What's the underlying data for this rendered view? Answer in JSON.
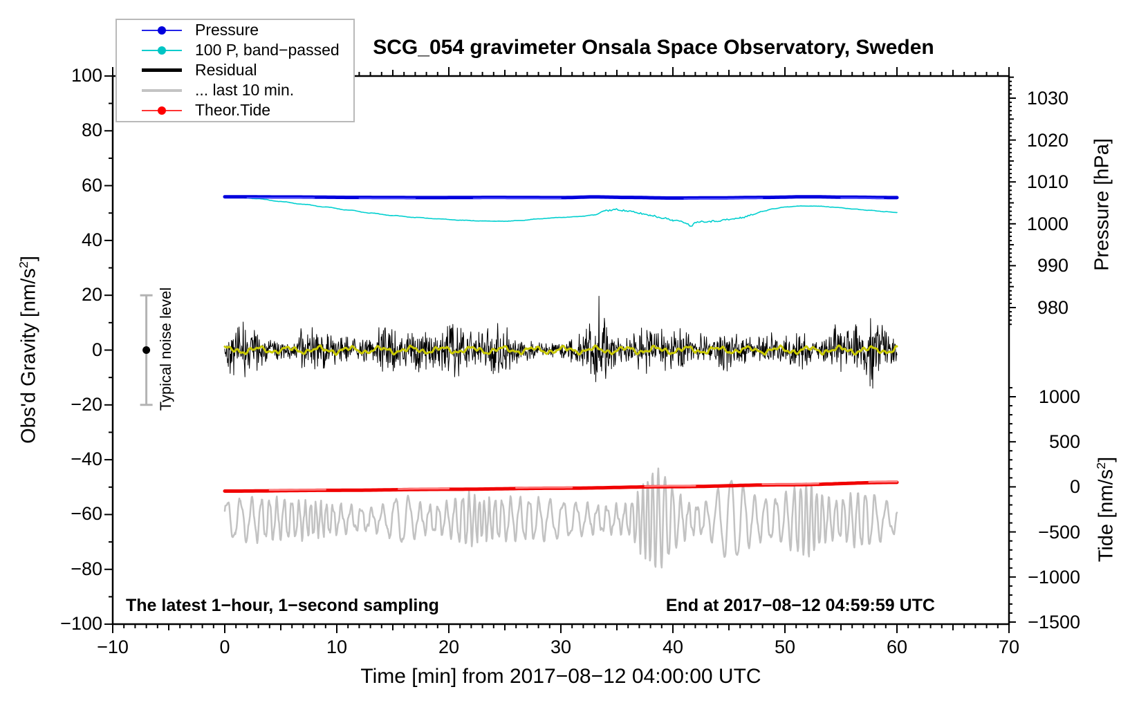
{
  "chart_data": {
    "type": "line",
    "title": "SCG_054 gravimeter Onsala Space Observatory, Sweden",
    "xlabel": "Time [min] from 2017−08−12 04:00:00 UTC",
    "ylabel_left": {
      "text": "Obs'd Gravity [nm/s",
      "sup": "2",
      "suffix": "]"
    },
    "ylabel_pressure": "Pressure [hPa]",
    "ylabel_tide": {
      "text": "Tide [nm/s",
      "sup": "2",
      "suffix": "]"
    },
    "annotation_left": "The latest 1−hour, 1−second sampling",
    "annotation_right": "End at 2017−08−12 04:59:59 UTC",
    "axes": {
      "x": {
        "min": -10,
        "max": 70,
        "minor_step": 1,
        "medium_step": 5,
        "ticks": [
          {
            "v": -10,
            "label": "−10"
          },
          {
            "v": 0,
            "label": "0"
          },
          {
            "v": 10,
            "label": "10"
          },
          {
            "v": 20,
            "label": "20"
          },
          {
            "v": 30,
            "label": "30"
          },
          {
            "v": 40,
            "label": "40"
          },
          {
            "v": 50,
            "label": "50"
          },
          {
            "v": 60,
            "label": "60"
          },
          {
            "v": 70,
            "label": "70"
          }
        ]
      },
      "gravity": {
        "min": -100,
        "max": 100,
        "minor_step": 10,
        "ticks": [
          {
            "v": 100,
            "label": "100"
          },
          {
            "v": 80,
            "label": "80"
          },
          {
            "v": 60,
            "label": "60"
          },
          {
            "v": 40,
            "label": "40"
          },
          {
            "v": 20,
            "label": "20"
          },
          {
            "v": 0,
            "label": "0"
          },
          {
            "v": -20,
            "label": "−20"
          },
          {
            "v": -40,
            "label": "−40"
          },
          {
            "v": -60,
            "label": "−60"
          },
          {
            "v": -80,
            "label": "−80"
          },
          {
            "v": -100,
            "label": "−100"
          }
        ]
      },
      "pressure": {
        "minor_range": [
          976,
          1035
        ],
        "minor_step": 1,
        "medium_step": 5,
        "ticks": [
          {
            "v": 1030,
            "label": "1030"
          },
          {
            "v": 1020,
            "label": "1020"
          },
          {
            "v": 1010,
            "label": "1010"
          },
          {
            "v": 1000,
            "label": "1000"
          },
          {
            "v": 990,
            "label": "990"
          },
          {
            "v": 980,
            "label": "980"
          }
        ]
      },
      "tide": {
        "minor_range": [
          -1500,
          1100
        ],
        "minor_step": 100,
        "ticks": [
          {
            "v": 1000,
            "label": "1000"
          },
          {
            "v": 500,
            "label": "500"
          },
          {
            "v": 0,
            "label": "0"
          },
          {
            "v": -500,
            "label": "−500"
          },
          {
            "v": -1000,
            "label": "−1000"
          },
          {
            "v": -1500,
            "label": "−1500"
          }
        ]
      }
    },
    "legend": [
      {
        "label": "Pressure",
        "color": "#2222e8",
        "line_width": 2,
        "marker": true,
        "marker_color": "#0000dd"
      },
      {
        "label": "100 P, band−passed",
        "color": "#00cccc",
        "line_width": 2,
        "marker": true,
        "marker_color": "#00c4c4"
      },
      {
        "label": "Residual",
        "color": "#000000",
        "line_width": 4.5,
        "marker": false,
        "marker_color": ""
      },
      {
        "label": "... last 10 min.",
        "color": "#c3c3c3",
        "line_width": 4,
        "marker": false,
        "marker_color": ""
      },
      {
        "label": "Theor.Tide",
        "color": "#ff3333",
        "line_width": 2,
        "marker": true,
        "marker_color": "#ff0000"
      }
    ],
    "noise_bar": {
      "t": -7,
      "center": 0,
      "half_range": 20,
      "label": "Typical noise level",
      "bar_color": "#b3b3b3",
      "dot_color": "#000000"
    },
    "series": {
      "pressure": {
        "units": "hPa",
        "color": "#0000dd",
        "width": 5,
        "overlay_color": "#4d4dff",
        "overlay_segments": [
          [
            2,
            8
          ],
          [
            12,
            17
          ],
          [
            22,
            30
          ],
          [
            41,
            48
          ],
          [
            55,
            59
          ]
        ],
        "points": [
          [
            0,
            1006.45
          ],
          [
            6,
            1006.4
          ],
          [
            12,
            1006.3
          ],
          [
            18,
            1006.25
          ],
          [
            24,
            1006.3
          ],
          [
            30,
            1006.25
          ],
          [
            33,
            1006.42
          ],
          [
            36,
            1006.3
          ],
          [
            40,
            1006.15
          ],
          [
            44,
            1006.2
          ],
          [
            48,
            1006.3
          ],
          [
            52,
            1006.45
          ],
          [
            56,
            1006.35
          ],
          [
            60,
            1006.25
          ]
        ]
      },
      "band_passed": {
        "units": "nm/s2 (gravity axis)",
        "color": "#00cfcf",
        "width": 1.6,
        "noisy_range": [
          34,
          47
        ],
        "noisy_jitter": 0.32,
        "base_jitter": 0.06,
        "points": [
          [
            0,
            55.8
          ],
          [
            1.5,
            55.6
          ],
          [
            3,
            55.2
          ],
          [
            5,
            54.2
          ],
          [
            7,
            53.2
          ],
          [
            9,
            52.2
          ],
          [
            11,
            51.1
          ],
          [
            13,
            50.0
          ],
          [
            15,
            49.1
          ],
          [
            17,
            48.4
          ],
          [
            19,
            47.9
          ],
          [
            21,
            47.4
          ],
          [
            23,
            47.1
          ],
          [
            25,
            47.0
          ],
          [
            26.5,
            47.3
          ],
          [
            28,
            47.9
          ],
          [
            30,
            48.4
          ],
          [
            31.5,
            48.7
          ],
          [
            33,
            49.3
          ],
          [
            34,
            50.9
          ],
          [
            35,
            51.3
          ],
          [
            36,
            50.7
          ],
          [
            37,
            49.9
          ],
          [
            38,
            49.2
          ],
          [
            39,
            48.3
          ],
          [
            40,
            47.4
          ],
          [
            41,
            46.7
          ],
          [
            41.6,
            45.4
          ],
          [
            42.2,
            46.9
          ],
          [
            43.5,
            47.0
          ],
          [
            45,
            47.6
          ],
          [
            46,
            48.2
          ],
          [
            47,
            49.3
          ],
          [
            48,
            50.6
          ],
          [
            49,
            51.6
          ],
          [
            50,
            52.2
          ],
          [
            51.5,
            52.6
          ],
          [
            53,
            52.5
          ],
          [
            54.5,
            52.1
          ],
          [
            56,
            51.5
          ],
          [
            57.5,
            51.0
          ],
          [
            59,
            50.5
          ],
          [
            60,
            50.2
          ]
        ]
      },
      "residual": {
        "units": "nm/s2 (gravity axis)",
        "color": "#000000",
        "width": 1,
        "mean": 0,
        "base_amp": 5.2,
        "seed": 42,
        "dt": 0.04,
        "spike_prob": 0.011,
        "spike_gain": 2.0,
        "bursts": [
          [
            1.8,
            0.7,
            4
          ],
          [
            7.5,
            0.8,
            5
          ],
          [
            13.9,
            0.8,
            5
          ],
          [
            20.8,
            0.9,
            6
          ],
          [
            24.3,
            0.6,
            4
          ],
          [
            33.4,
            0.8,
            6
          ],
          [
            37.2,
            0.7,
            4
          ],
          [
            44.8,
            0.8,
            4
          ],
          [
            51.3,
            0.7,
            4
          ],
          [
            54.2,
            0.6,
            4
          ],
          [
            57.8,
            0.8,
            6
          ]
        ]
      },
      "residual_smooth": {
        "units": "nm/s2 (gravity axis)",
        "color": "#c9c900",
        "width": 3,
        "mean": 0,
        "amp": 1.3,
        "seed": 3,
        "dt": 0.08
      },
      "last10min": {
        "units": "nm/s2 (gravity axis)",
        "color": "#c2c2c2",
        "width": 2.5,
        "mean": -61.8,
        "base_amp": 5.4,
        "seed": 7,
        "dt": 0.05,
        "period_min": 0.82,
        "bursts": [
          [
            15.8,
            0.9,
            5
          ],
          [
            21.5,
            0.8,
            3
          ],
          [
            38.6,
            1.3,
            14
          ],
          [
            45.2,
            1.0,
            9
          ],
          [
            51.8,
            1.1,
            6
          ],
          [
            57.2,
            1.4,
            5
          ]
        ]
      },
      "theor_tide": {
        "units": "nm/s2 (tide axis)",
        "color": "#f00000",
        "width": 5,
        "overlay_color": "#ff8080",
        "overlay_segments": [
          [
            4,
            9
          ],
          [
            15.5,
            20
          ],
          [
            26,
            31
          ],
          [
            37.5,
            42
          ],
          [
            48,
            53
          ],
          [
            57.5,
            60
          ]
        ],
        "points": [
          [
            0,
            -47
          ],
          [
            10,
            -38
          ],
          [
            20,
            -27
          ],
          [
            30,
            -15
          ],
          [
            40,
            2
          ],
          [
            50,
            23
          ],
          [
            60,
            50
          ]
        ]
      }
    },
    "x_data_range": [
      0,
      60
    ],
    "grid": false,
    "legend_position": "top-left"
  }
}
